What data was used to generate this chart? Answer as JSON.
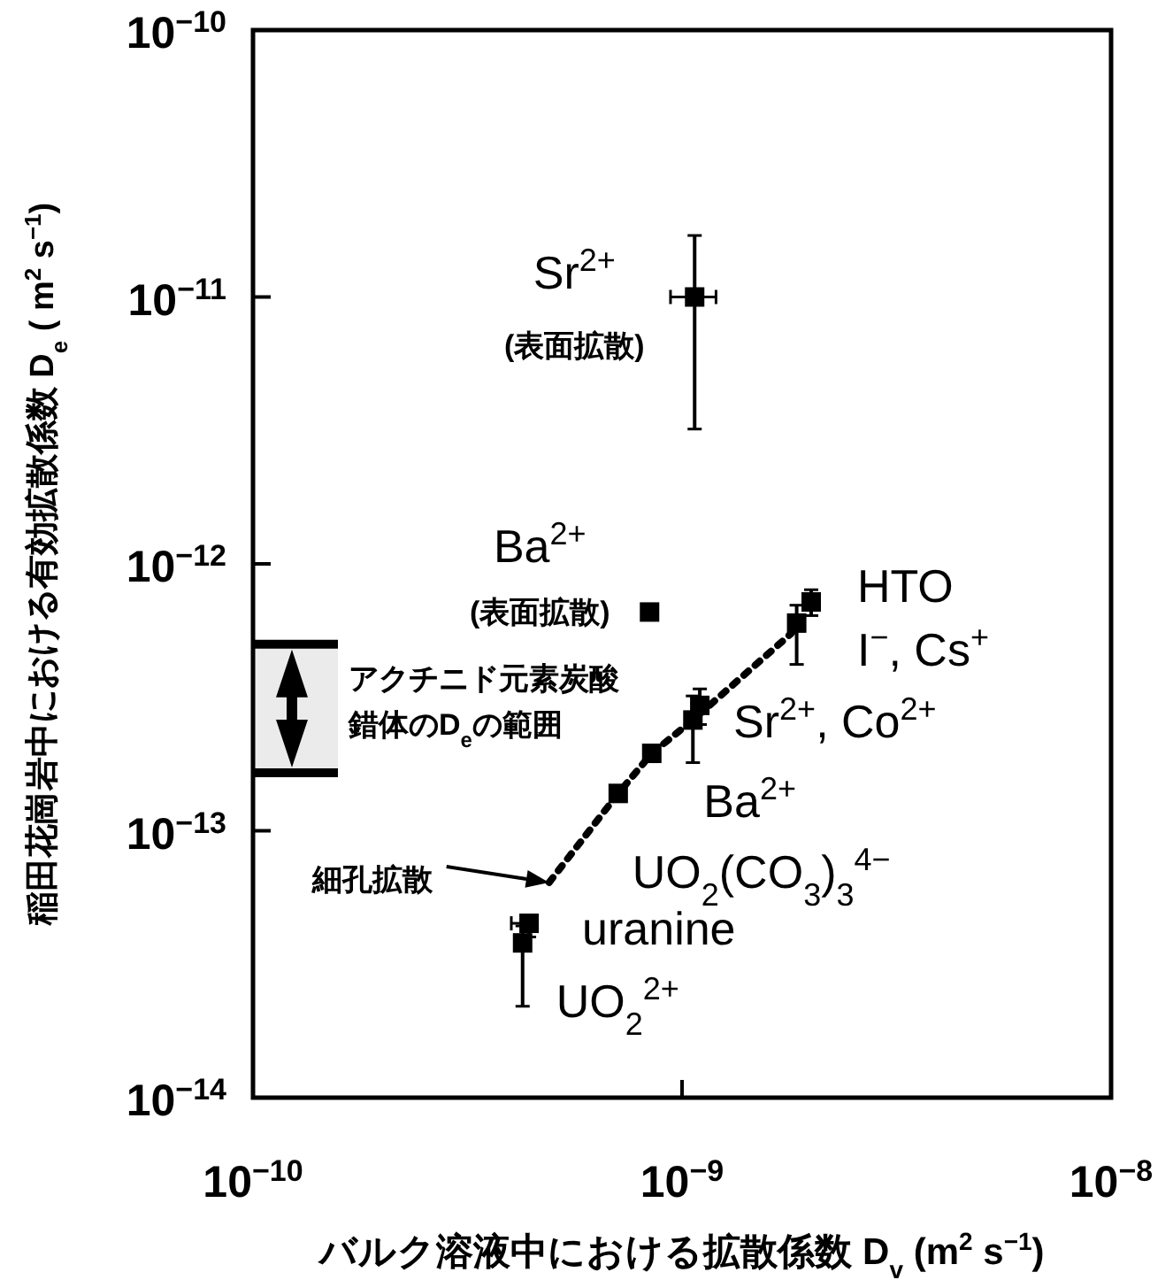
{
  "chart_data": {
    "type": "scatter",
    "xlabel": "バルク溶液中における拡散係数 D$_{v}$ (m$^{2}$ s$^{−1}$)",
    "ylabel": "稲田花崗岩中における有効拡散係数 D$_{e}$ ( m$^{2}$ s$^{−1}$)",
    "log": "xy",
    "xlim": [
      1e-10,
      1e-08
    ],
    "ylim": [
      1e-14,
      1e-10
    ],
    "xticks": [
      {
        "value": 1e-10,
        "label": "10$^{−10}$"
      },
      {
        "value": 1e-09,
        "label": "10$^{−9}$"
      },
      {
        "value": 1e-08,
        "label": "10$^{−8}$"
      }
    ],
    "yticks": [
      {
        "value": 1e-14,
        "label": "10$^{−14}$"
      },
      {
        "value": 1e-13,
        "label": "10$^{−13}$"
      },
      {
        "value": 1e-12,
        "label": "10$^{−12}$"
      },
      {
        "value": 1e-11,
        "label": "10$^{−11}$"
      },
      {
        "value": 1e-10,
        "label": "10$^{−10}$"
      }
    ],
    "grid": false,
    "marker": "square",
    "series": [
      {
        "type": "scatter",
        "color": "#000000",
        "x": [
          1.07e-09,
          8.4e-10
        ],
        "values": [
          1e-11,
          6.6e-13
        ],
        "errors": [
          [
            3.2e-12,
            1.7e-11
          ],
          null
        ],
        "xerrors": [
          [
            9.4e-10,
            1.2e-09
          ],
          null
        ]
      },
      {
        "type": "scatter",
        "color": "#000000",
        "x": [
          2e-09,
          1.85e-09,
          1.1e-09,
          1.06e-09,
          8.5e-10,
          7.1e-10,
          4.4e-10,
          4.25e-10
        ],
        "values": [
          7.2e-13,
          6e-13,
          2.95e-13,
          2.6e-13,
          1.95e-13,
          1.38e-13,
          4.5e-14,
          3.8e-14
        ],
        "errors": [
          [
            6.4e-13,
            8e-13
          ],
          [
            4.2e-13,
            7e-13
          ],
          [
            2.5e-13,
            3.4e-13
          ],
          [
            1.8e-13,
            3.2e-13
          ],
          null,
          null,
          [
            4e-14,
            4.7e-14
          ],
          [
            2.2e-14,
            4.4e-14
          ]
        ],
        "xerrors": [
          null,
          null,
          null,
          null,
          null,
          null,
          [
            4e-10,
            4.6e-10
          ],
          null
        ]
      },
      {
        "type": "line",
        "color": "#000000",
        "line_style": "dotted",
        "marker": "none",
        "x": [
          4.9e-10,
          7.1e-10,
          8.5e-10,
          1.06e-09,
          1.8e-09
        ],
        "values": [
          6.4e-14,
          1.38e-13,
          1.95e-13,
          2.6e-13,
          5.5e-13
        ]
      }
    ],
    "bands": [
      {
        "axis": "y",
        "from": 1.65e-13,
        "to": 5e-13,
        "label": "アクチニド元素炭酸錯体のD$_{e}$の範囲"
      }
    ],
    "annotations": [
      {
        "text": "Sr$^{2+}$",
        "x": 1.07e-09,
        "y": 1e-11
      },
      {
        "text": "(表面拡散)",
        "x": 1.07e-09,
        "y": 1e-11
      },
      {
        "text": "Ba$^{2+}$",
        "x": 8.4e-10,
        "y": 6.6e-13
      },
      {
        "text": "(表面拡散)",
        "x": 8.4e-10,
        "y": 6.6e-13
      },
      {
        "text": "HTO\nI$^{−}$, Cs$^{+}$",
        "x": 2e-09,
        "y": 7.2e-13
      },
      {
        "text": "Sr$^{2+}$, Co$^{2+}$",
        "x": 1.1e-09,
        "y": 2.95e-13
      },
      {
        "text": "Ba$^{2+}$",
        "x": 1.06e-09,
        "y": 2.6e-13
      },
      {
        "text": "UO$_{2}$(CO$_{3}$)$_{3}$$^{4−}$",
        "x": 8.5e-10,
        "y": 1.95e-13
      },
      {
        "text": "uranine",
        "x": 4.4e-10,
        "y": 4.5e-14
      },
      {
        "text": "UO$_{2}$$^{2+}$",
        "x": 4.25e-10,
        "y": 3.8e-14
      },
      "細孔拡散"
    ]
  }
}
